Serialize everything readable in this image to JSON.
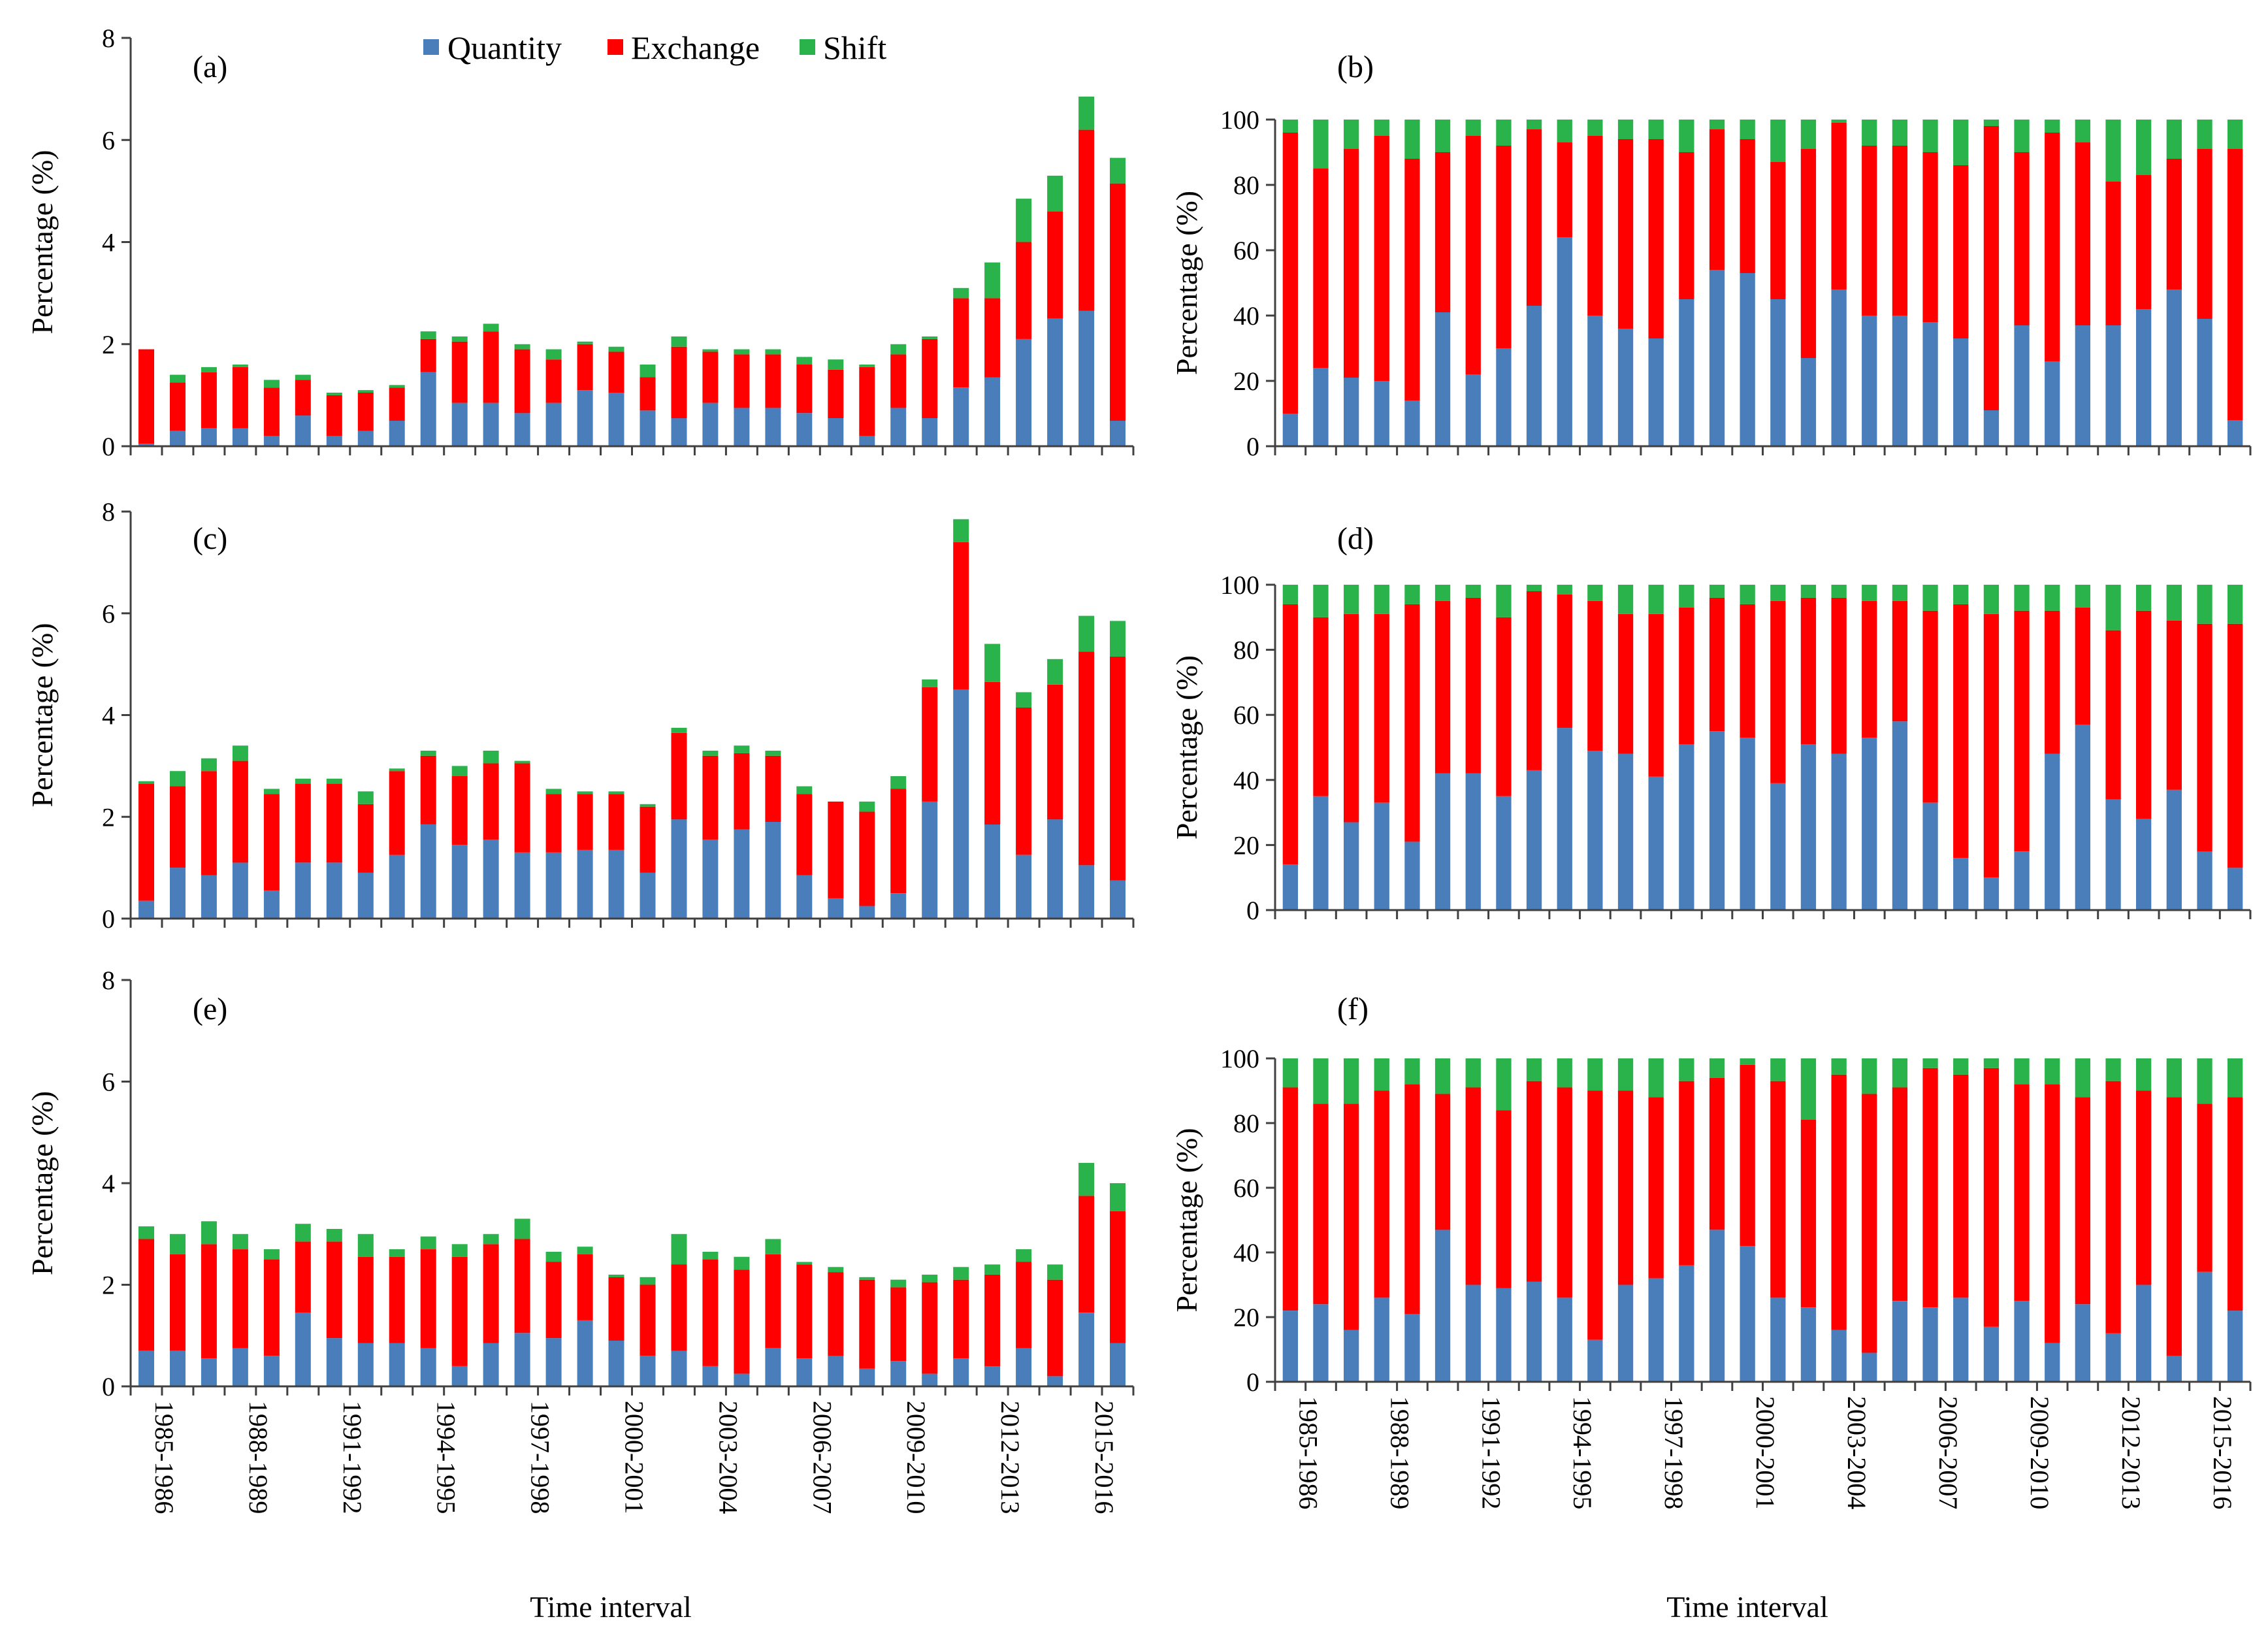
{
  "legend": [
    {
      "key": "quantity",
      "label": "Quantity",
      "color": "#4a7ebb"
    },
    {
      "key": "exchange",
      "label": "Exchange",
      "color": "#ff0000"
    },
    {
      "key": "shift",
      "label": "Shift",
      "color": "#29b34a"
    }
  ],
  "x_axis_title": "Time interval",
  "y_axis_title": "Percentage (%)",
  "x_tick_labels": [
    "1985-1986",
    "1988-1989",
    "1991-1992",
    "1994-1995",
    "1997-1998",
    "2000-2001",
    "2003-2004",
    "2006-2007",
    "2009-2010",
    "2012-2013",
    "2015-2016"
  ],
  "chart_data": [
    {
      "id": "a",
      "panel_label": "(a)",
      "type": "bar",
      "stacked": true,
      "ylim": [
        0,
        8
      ],
      "yticks": [
        0,
        2,
        4,
        6,
        8
      ],
      "series": [
        {
          "name": "Quantity",
          "values": [
            0.05,
            0.3,
            0.35,
            0.35,
            0.2,
            0.6,
            0.2,
            0.3,
            0.5,
            1.45,
            0.85,
            0.85,
            0.65,
            0.85,
            1.1,
            1.05,
            0.7,
            0.55,
            0.85,
            0.75,
            0.75,
            0.65,
            0.55,
            0.2,
            0.75,
            0.55,
            1.15,
            1.35,
            2.1,
            2.5,
            2.65,
            0.5
          ]
        },
        {
          "name": "Exchange",
          "values": [
            1.85,
            0.95,
            1.1,
            1.2,
            0.95,
            0.7,
            0.8,
            0.75,
            0.65,
            0.65,
            1.2,
            1.4,
            1.25,
            0.85,
            0.9,
            0.8,
            0.65,
            1.4,
            1.0,
            1.05,
            1.05,
            0.95,
            0.95,
            1.35,
            1.05,
            1.55,
            1.75,
            1.55,
            1.9,
            2.1,
            3.55,
            4.65
          ]
        },
        {
          "name": "Shift",
          "values": [
            0.0,
            0.15,
            0.1,
            0.05,
            0.15,
            0.1,
            0.05,
            0.05,
            0.05,
            0.15,
            0.1,
            0.15,
            0.1,
            0.2,
            0.05,
            0.1,
            0.25,
            0.2,
            0.05,
            0.1,
            0.1,
            0.15,
            0.2,
            0.05,
            0.2,
            0.05,
            0.2,
            0.7,
            0.85,
            0.7,
            0.65,
            0.5
          ]
        }
      ]
    },
    {
      "id": "b",
      "panel_label": "(b)",
      "type": "bar",
      "stacked": true,
      "ylim": [
        0,
        100
      ],
      "yticks": [
        0,
        20,
        40,
        60,
        80,
        100
      ],
      "series": [
        {
          "name": "Quantity",
          "values": [
            10,
            24,
            21,
            20,
            14,
            41,
            22,
            30,
            43,
            64,
            40,
            36,
            33,
            45,
            54,
            53,
            45,
            27,
            48,
            40,
            40,
            38,
            33,
            11,
            37,
            26,
            37,
            37,
            42,
            48,
            39,
            8
          ]
        },
        {
          "name": "Exchange",
          "values": [
            86,
            61,
            70,
            75,
            74,
            49,
            73,
            62,
            54,
            29,
            55,
            58,
            61,
            45,
            43,
            41,
            42,
            64,
            51,
            52,
            52,
            52,
            53,
            87,
            53,
            70,
            56,
            44,
            41,
            40,
            52,
            83
          ]
        },
        {
          "name": "Shift",
          "values": [
            4,
            15,
            9,
            5,
            12,
            10,
            5,
            8,
            3,
            7,
            5,
            6,
            6,
            10,
            3,
            6,
            13,
            9,
            1,
            8,
            8,
            10,
            14,
            2,
            10,
            4,
            7,
            19,
            17,
            12,
            9,
            9
          ]
        }
      ]
    },
    {
      "id": "c",
      "panel_label": "(c)",
      "type": "bar",
      "stacked": true,
      "ylim": [
        0,
        8
      ],
      "yticks": [
        0,
        2,
        4,
        6,
        8
      ],
      "series": [
        {
          "name": "Quantity",
          "values": [
            0.35,
            1.0,
            0.85,
            1.1,
            0.55,
            1.1,
            1.1,
            0.9,
            1.25,
            1.85,
            1.45,
            1.55,
            1.3,
            1.3,
            1.35,
            1.35,
            0.9,
            1.95,
            1.55,
            1.75,
            1.9,
            0.85,
            0.4,
            0.25,
            0.5,
            2.3,
            4.5,
            1.85,
            1.25,
            1.95,
            1.05,
            0.75
          ]
        },
        {
          "name": "Exchange",
          "values": [
            2.3,
            1.6,
            2.05,
            2.0,
            1.9,
            1.55,
            1.55,
            1.35,
            1.65,
            1.35,
            1.35,
            1.5,
            1.75,
            1.15,
            1.1,
            1.1,
            1.3,
            1.7,
            1.65,
            1.5,
            1.3,
            1.6,
            1.9,
            1.85,
            2.05,
            2.25,
            2.9,
            2.8,
            2.9,
            2.65,
            4.2,
            4.4
          ]
        },
        {
          "name": "Shift",
          "values": [
            0.05,
            0.3,
            0.25,
            0.3,
            0.1,
            0.1,
            0.1,
            0.25,
            0.05,
            0.1,
            0.2,
            0.25,
            0.05,
            0.1,
            0.05,
            0.05,
            0.05,
            0.1,
            0.1,
            0.15,
            0.1,
            0.15,
            0.0,
            0.2,
            0.25,
            0.15,
            0.45,
            0.75,
            0.3,
            0.5,
            0.7,
            0.7
          ]
        }
      ]
    },
    {
      "id": "d",
      "panel_label": "(d)",
      "type": "bar",
      "stacked": true,
      "ylim": [
        0,
        100
      ],
      "yticks": [
        0,
        20,
        40,
        60,
        80,
        100
      ],
      "series": [
        {
          "name": "Quantity",
          "values": [
            14,
            35,
            27,
            33,
            21,
            42,
            42,
            35,
            43,
            56,
            49,
            48,
            41,
            51,
            55,
            53,
            39,
            51,
            48,
            53,
            58,
            33,
            16,
            10,
            18,
            48,
            57,
            34,
            28,
            37,
            18,
            13
          ]
        },
        {
          "name": "Exchange",
          "values": [
            80,
            55,
            64,
            58,
            73,
            53,
            54,
            55,
            55,
            41,
            46,
            43,
            50,
            42,
            41,
            41,
            56,
            45,
            48,
            42,
            37,
            59,
            78,
            81,
            74,
            44,
            36,
            52,
            64,
            52,
            70,
            75
          ]
        },
        {
          "name": "Shift",
          "values": [
            6,
            10,
            9,
            9,
            6,
            5,
            4,
            10,
            2,
            3,
            5,
            9,
            9,
            7,
            4,
            6,
            5,
            4,
            4,
            5,
            5,
            8,
            6,
            9,
            8,
            8,
            7,
            14,
            8,
            11,
            12,
            12
          ]
        }
      ]
    },
    {
      "id": "e",
      "panel_label": "(e)",
      "type": "bar",
      "stacked": true,
      "ylim": [
        0,
        8
      ],
      "yticks": [
        0,
        2,
        4,
        6,
        8
      ],
      "series": [
        {
          "name": "Quantity",
          "values": [
            0.7,
            0.7,
            0.55,
            0.75,
            0.6,
            1.45,
            0.95,
            0.85,
            0.85,
            0.75,
            0.4,
            0.85,
            1.05,
            0.95,
            1.3,
            0.9,
            0.6,
            0.7,
            0.4,
            0.25,
            0.75,
            0.55,
            0.6,
            0.35,
            0.5,
            0.25,
            0.55,
            0.4,
            0.75,
            0.2,
            1.45,
            0.85
          ]
        },
        {
          "name": "Exchange",
          "values": [
            2.2,
            1.9,
            2.25,
            1.95,
            1.9,
            1.4,
            1.9,
            1.7,
            1.7,
            1.95,
            2.15,
            1.95,
            1.85,
            1.5,
            1.3,
            1.25,
            1.4,
            1.7,
            2.1,
            2.05,
            1.85,
            1.85,
            1.65,
            1.75,
            1.45,
            1.8,
            1.55,
            1.8,
            1.7,
            1.9,
            2.3,
            2.6
          ]
        },
        {
          "name": "Shift",
          "values": [
            0.25,
            0.4,
            0.45,
            0.3,
            0.2,
            0.35,
            0.25,
            0.45,
            0.15,
            0.25,
            0.25,
            0.2,
            0.4,
            0.2,
            0.15,
            0.05,
            0.15,
            0.6,
            0.15,
            0.25,
            0.3,
            0.05,
            0.1,
            0.05,
            0.15,
            0.15,
            0.25,
            0.2,
            0.25,
            0.3,
            0.65,
            0.55
          ]
        }
      ]
    },
    {
      "id": "f",
      "panel_label": "(f)",
      "type": "bar",
      "stacked": true,
      "ylim": [
        0,
        100
      ],
      "yticks": [
        0,
        20,
        40,
        60,
        80,
        100
      ],
      "series": [
        {
          "name": "Quantity",
          "values": [
            22,
            24,
            16,
            26,
            21,
            47,
            30,
            29,
            31,
            26,
            13,
            30,
            32,
            36,
            47,
            42,
            26,
            23,
            16,
            9,
            25,
            23,
            26,
            17,
            25,
            12,
            24,
            15,
            30,
            8,
            34,
            22
          ]
        },
        {
          "name": "Exchange",
          "values": [
            69,
            62,
            70,
            64,
            71,
            42,
            61,
            55,
            62,
            65,
            77,
            60,
            56,
            57,
            47,
            56,
            67,
            58,
            79,
            80,
            66,
            74,
            69,
            80,
            67,
            80,
            64,
            78,
            60,
            80,
            52,
            66
          ]
        },
        {
          "name": "Shift",
          "values": [
            9,
            14,
            14,
            10,
            8,
            11,
            9,
            16,
            7,
            9,
            10,
            10,
            12,
            7,
            6,
            2,
            7,
            19,
            5,
            11,
            9,
            3,
            5,
            3,
            8,
            8,
            12,
            7,
            10,
            12,
            14,
            12
          ]
        }
      ]
    }
  ]
}
